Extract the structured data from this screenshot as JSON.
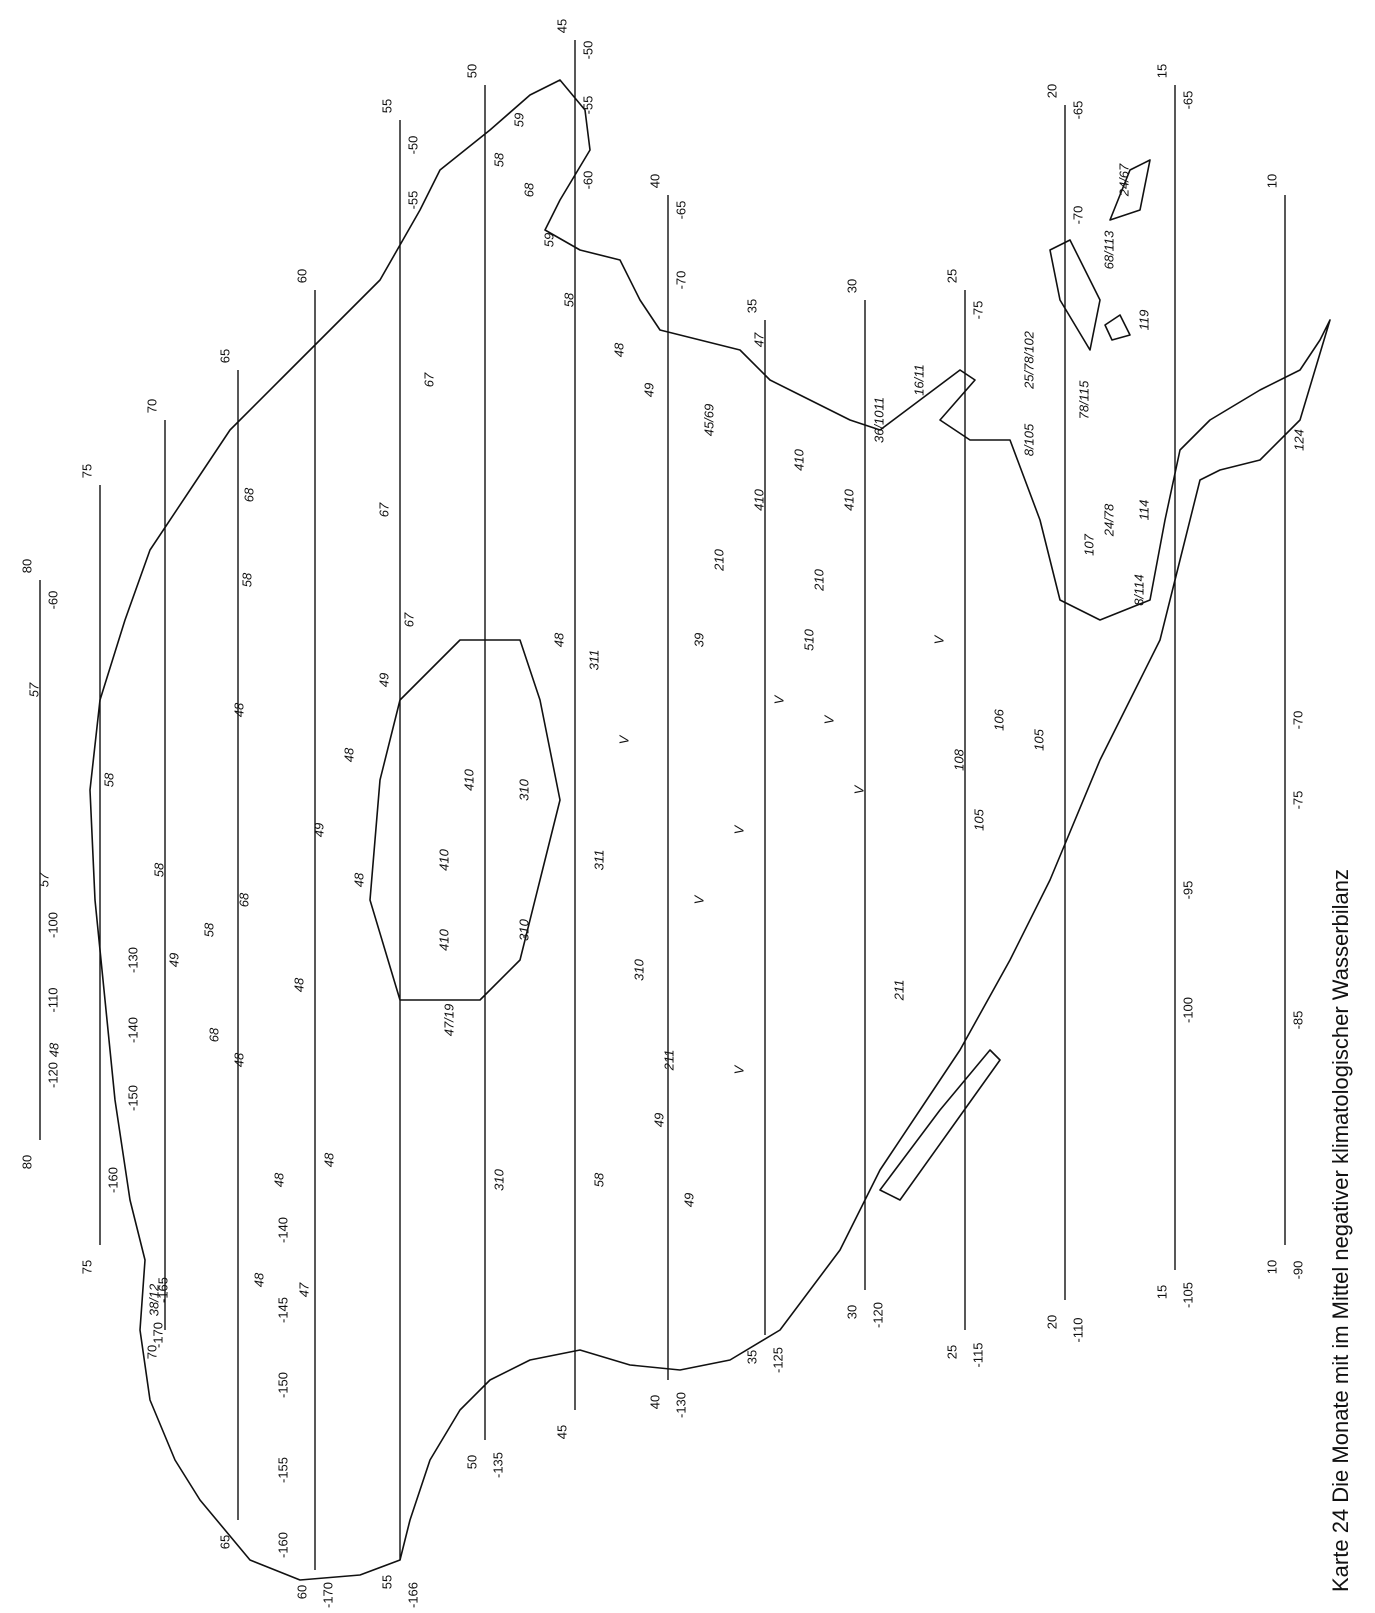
{
  "caption": "Karte 24   Die Monate mit im Mittel negativer klimatologischer Wasserbilanz",
  "parallels": [
    "80",
    "75",
    "70",
    "65",
    "60",
    "55",
    "50",
    "45",
    "40",
    "35",
    "30",
    "25",
    "20",
    "15",
    "10"
  ],
  "meridian_labels": [
    "-120",
    "-110",
    "-100",
    "-60",
    "-160",
    "-150",
    "-140",
    "-130",
    "-170",
    "-165",
    "-160",
    "-155",
    "-150",
    "-145",
    "-140",
    "-170",
    "-166",
    "-135",
    "-130",
    "-125",
    "-120",
    "-115",
    "-110",
    "-105",
    "-100",
    "-95",
    "-90",
    "-85",
    "-75",
    "-70",
    "-65",
    "-70",
    "-65",
    "-75",
    "-70",
    "-65",
    "-50",
    "-55",
    "-60",
    "-50",
    "-55"
  ],
  "region_labels": [
    "57",
    "48",
    "57",
    "58",
    "49",
    "58",
    "38/12",
    "68",
    "58",
    "68",
    "58",
    "68",
    "48",
    "48",
    "48",
    "48",
    "47",
    "49",
    "48",
    "48",
    "48",
    "49",
    "48",
    "67",
    "67",
    "67",
    "410",
    "410",
    "47/19",
    "410",
    "310",
    "310",
    "48",
    "311",
    "311",
    "V",
    "310",
    "211",
    "V",
    "39",
    "210",
    "V",
    "410",
    "V",
    "410",
    "510",
    "210",
    "V",
    "410",
    "V",
    "36/1011",
    "16/11",
    "V",
    "108",
    "105",
    "106",
    "105",
    "8/105",
    "25/78/102",
    "78/115",
    "107",
    "24/78",
    "8/114",
    "114",
    "68/113",
    "24/67",
    "119",
    "124",
    "211",
    "V",
    "58",
    "49",
    "49",
    "310",
    "59",
    "68",
    "58",
    "59",
    "58",
    "48",
    "49",
    "47",
    "45/69"
  ]
}
